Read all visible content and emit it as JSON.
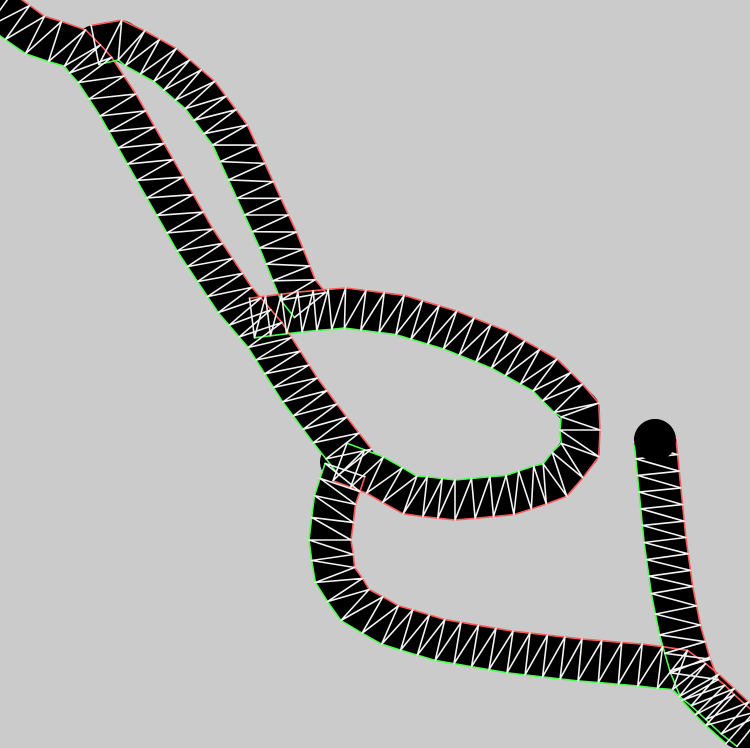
{
  "figure": {
    "title": "",
    "description_visible_text": ""
  },
  "colors": {
    "background": "#cbcbcb",
    "band_fill": "#000000",
    "mesh_edges": "#f4f4f4",
    "outline_green": "#4dff4d",
    "outline_red": "#ff5a5a"
  },
  "mesh": {
    "strands": [
      {
        "id": "upper-left-strand"
      },
      {
        "id": "upper-loop"
      },
      {
        "id": "middle-loop"
      },
      {
        "id": "lower-loop"
      },
      {
        "id": "right-branch"
      },
      {
        "id": "bottom-right-exit"
      }
    ]
  }
}
